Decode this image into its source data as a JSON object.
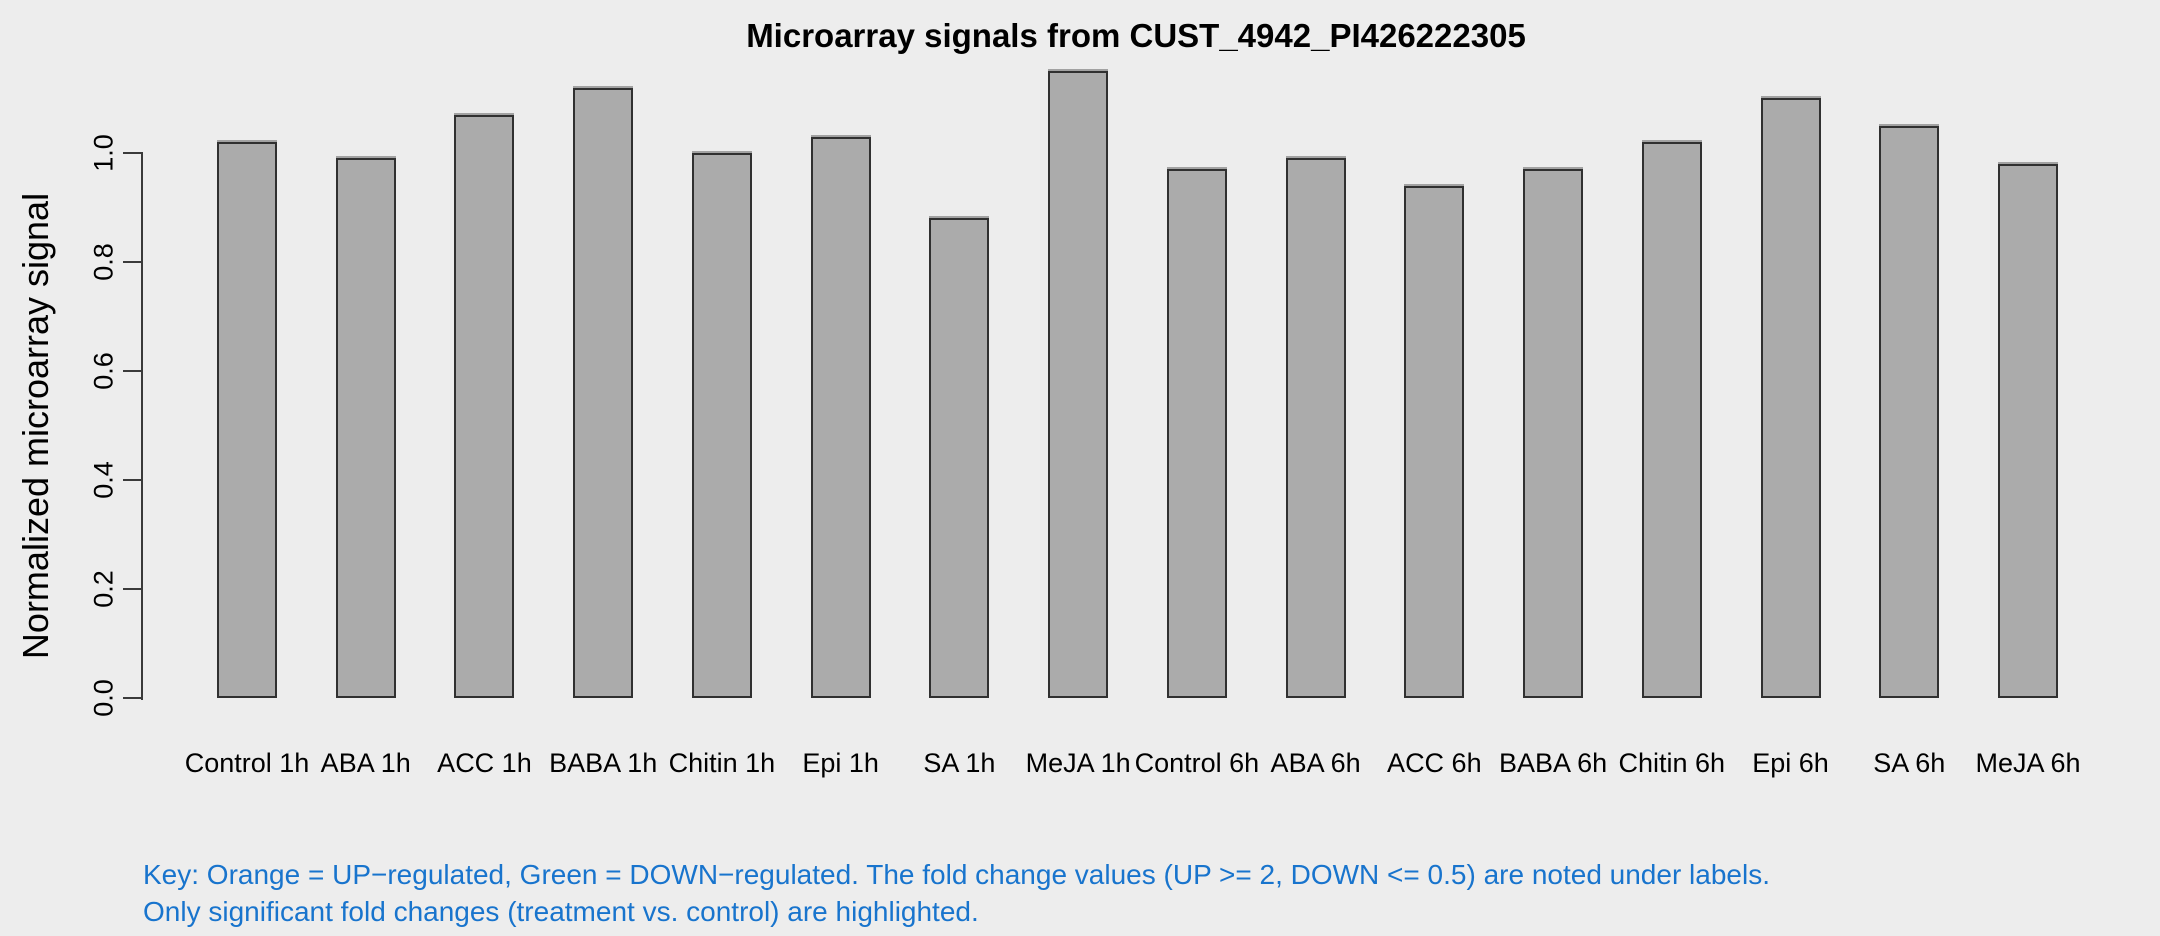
{
  "figure": {
    "background": "#EDEDED",
    "key_color": "#1874CD",
    "key_line1": "Key: Orange = UP−regulated, Green = DOWN−regulated. The fold change values (UP >= 2, DOWN <= 0.5) are noted under labels.",
    "key_line2": "Only significant fold changes (treatment vs. control) are highlighted."
  },
  "chart_data": {
    "type": "bar",
    "title": "Microarray signals from CUST_4942_PI426222305",
    "xlabel": "",
    "ylabel": "Normalized microarray signal",
    "categories": [
      "Control 1h",
      "ABA 1h",
      "ACC 1h",
      "BABA 1h",
      "Chitin 1h",
      "Epi 1h",
      "SA 1h",
      "MeJA 1h",
      "Control 6h",
      "ABA 6h",
      "ACC 6h",
      "BABA 6h",
      "Chitin 6h",
      "Epi 6h",
      "SA 6h",
      "MeJA 6h"
    ],
    "values": [
      1.02,
      0.99,
      1.07,
      1.12,
      1.0,
      1.03,
      0.88,
      1.15,
      0.97,
      0.99,
      0.94,
      0.97,
      1.02,
      1.1,
      1.05,
      0.98
    ],
    "yticks": [
      0.0,
      0.2,
      0.4,
      0.6,
      0.8,
      1.0
    ],
    "ytick_labels": [
      "0.0",
      "0.2",
      "0.4",
      "0.6",
      "0.8",
      "1.0"
    ],
    "ylim": [
      0,
      1.16
    ],
    "grid": false,
    "legend": "none",
    "bar_color": "#ABABAB",
    "bar_border_color": "#303030"
  }
}
